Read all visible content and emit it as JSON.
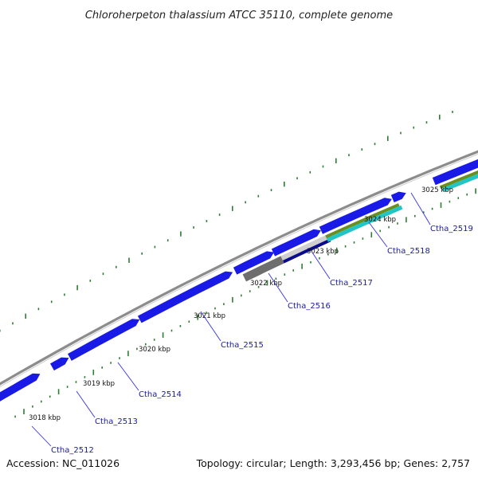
{
  "title": "Chloroherpeton thalassium ATCC 35110, complete genome",
  "footer": {
    "accession": "Accession: NC_011026",
    "summary": "Topology: circular; Length: 3,293,456 bp; Genes: 2,757"
  },
  "colors": {
    "backbone": "#8c8c8c",
    "gene_blue": "#1a1ae6",
    "gene_dark_gray": "#6e6e6e",
    "gene_light_gray": "#cfcfcf",
    "gene_navy": "#0a0a8c",
    "gene_olive": "#6b8e23",
    "gene_cyan": "#20c5c5",
    "tick_green": "#2e7d32",
    "label_blue": "#1a1aa0"
  },
  "kbp_labels": [
    "3018 kbp",
    "3019 kbp",
    "3020 kbp",
    "3021 kbp",
    "3022 kbp",
    "3023 kbp",
    "3024 kbp",
    "3025 kbp"
  ],
  "gene_labels": [
    "Ctha_2512",
    "Ctha_2513",
    "Ctha_2514",
    "Ctha_2515",
    "Ctha_2516",
    "Ctha_2517",
    "Ctha_2518",
    "Ctha_2519"
  ]
}
